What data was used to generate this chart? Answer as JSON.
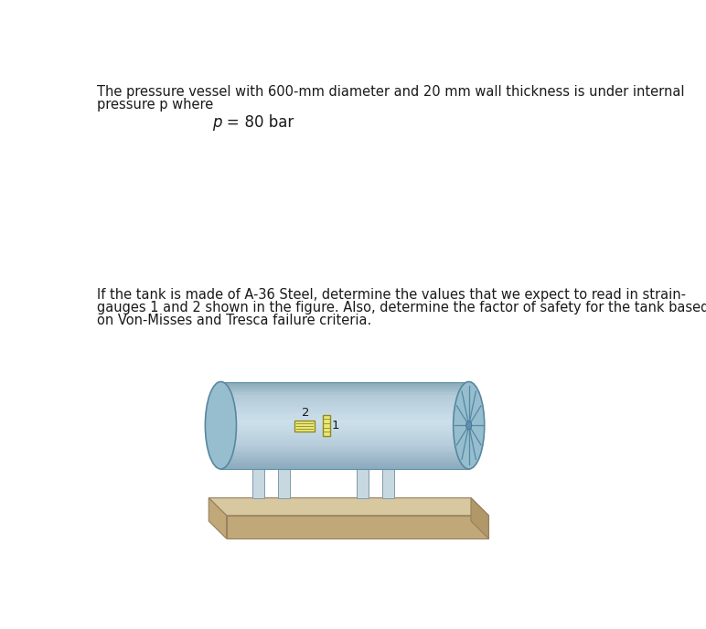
{
  "line1": "The pressure vessel with 600-mm diameter and 20 mm wall thickness is under internal",
  "line2": "pressure p where",
  "p_label": "p =",
  "p_value": "  80 bar",
  "body_text_line1": "If the tank is made of A-36 Steel, determine the values that we expect to read in strain-",
  "body_text_line2": "gauges 1 and 2 shown in the figure. Also, determine the factor of safety for the tank based",
  "body_text_line3": "on Von-Misses and Tresca failure criteria.",
  "bg_color": "#ffffff",
  "text_color": "#1a1a1a",
  "tank_body_color_dark": "#7aaabb",
  "tank_body_color_mid": "#a8ccd8",
  "tank_body_color_light": "#cce0e8",
  "tank_end_color": "#8ab8c8",
  "tank_end_dark": "#5888a0",
  "support_color": "#c8d8e0",
  "support_dark": "#9ab0bc",
  "base_top_color": "#d8c8a0",
  "base_front_color": "#c0a878",
  "base_right_color": "#b09868",
  "gauge_fill": "#e8e878",
  "gauge_stroke": "#908820",
  "font_size_body": 10.5,
  "font_size_p": 12
}
